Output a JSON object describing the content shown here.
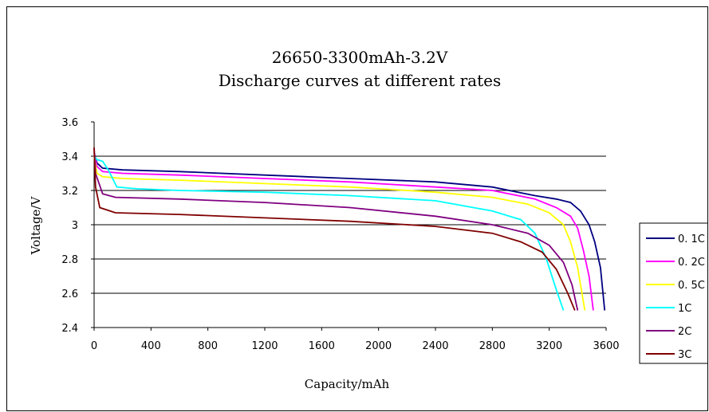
{
  "chart_data": {
    "type": "line",
    "title": "26650-3300mAh-3.2V",
    "subtitle": "Discharge curves at different rates",
    "xlabel": "Capacity/mAh",
    "ylabel": "Voltage/V",
    "xlim": [
      0,
      3600
    ],
    "ylim": [
      2.4,
      3.6
    ],
    "x_ticks": [
      0,
      400,
      800,
      1200,
      1600,
      2000,
      2400,
      2800,
      3200,
      3600
    ],
    "y_ticks": [
      2.4,
      2.6,
      2.8,
      3,
      3.2,
      3.4,
      3.6
    ],
    "x_tick_labels": [
      "0",
      "400",
      "800",
      "1200",
      "1600",
      "2000",
      "2400",
      "2800",
      "3200",
      "3600"
    ],
    "y_tick_labels": [
      "2.4",
      "2.6",
      "2.8",
      "3",
      "3.2",
      "3.4",
      "3.6"
    ],
    "grid": true,
    "legend_position": "right",
    "series": [
      {
        "name": "0. 1C",
        "color": "#000080",
        "points": [
          [
            0,
            3.42
          ],
          [
            20,
            3.36
          ],
          [
            60,
            3.33
          ],
          [
            200,
            3.32
          ],
          [
            600,
            3.31
          ],
          [
            1200,
            3.29
          ],
          [
            1800,
            3.27
          ],
          [
            2400,
            3.25
          ],
          [
            2800,
            3.22
          ],
          [
            3100,
            3.17
          ],
          [
            3250,
            3.15
          ],
          [
            3350,
            3.13
          ],
          [
            3420,
            3.08
          ],
          [
            3480,
            3.0
          ],
          [
            3520,
            2.9
          ],
          [
            3560,
            2.75
          ],
          [
            3590,
            2.5
          ]
        ]
      },
      {
        "name": "0. 2C",
        "color": "#ff00ff",
        "points": [
          [
            0,
            3.42
          ],
          [
            20,
            3.34
          ],
          [
            60,
            3.31
          ],
          [
            200,
            3.3
          ],
          [
            600,
            3.29
          ],
          [
            1200,
            3.27
          ],
          [
            1800,
            3.25
          ],
          [
            2400,
            3.22
          ],
          [
            2800,
            3.2
          ],
          [
            3100,
            3.15
          ],
          [
            3250,
            3.1
          ],
          [
            3350,
            3.05
          ],
          [
            3400,
            2.98
          ],
          [
            3440,
            2.85
          ],
          [
            3480,
            2.7
          ],
          [
            3510,
            2.5
          ]
        ]
      },
      {
        "name": "0. 5C",
        "color": "#ffff00",
        "points": [
          [
            0,
            3.4
          ],
          [
            20,
            3.3
          ],
          [
            60,
            3.28
          ],
          [
            200,
            3.27
          ],
          [
            600,
            3.26
          ],
          [
            1200,
            3.24
          ],
          [
            1800,
            3.22
          ],
          [
            2400,
            3.19
          ],
          [
            2800,
            3.16
          ],
          [
            3050,
            3.12
          ],
          [
            3200,
            3.07
          ],
          [
            3300,
            3.0
          ],
          [
            3350,
            2.9
          ],
          [
            3400,
            2.75
          ],
          [
            3430,
            2.6
          ],
          [
            3450,
            2.5
          ]
        ]
      },
      {
        "name": "1C",
        "color": "#00ffff",
        "points": [
          [
            0,
            3.4
          ],
          [
            20,
            3.38
          ],
          [
            60,
            3.37
          ],
          [
            100,
            3.32
          ],
          [
            160,
            3.22
          ],
          [
            300,
            3.21
          ],
          [
            600,
            3.2
          ],
          [
            1200,
            3.19
          ],
          [
            1800,
            3.17
          ],
          [
            2400,
            3.14
          ],
          [
            2800,
            3.08
          ],
          [
            3000,
            3.03
          ],
          [
            3100,
            2.95
          ],
          [
            3180,
            2.8
          ],
          [
            3250,
            2.62
          ],
          [
            3300,
            2.5
          ]
        ]
      },
      {
        "name": "2C",
        "color": "#800080",
        "points": [
          [
            0,
            3.45
          ],
          [
            10,
            3.3
          ],
          [
            60,
            3.18
          ],
          [
            150,
            3.16
          ],
          [
            600,
            3.15
          ],
          [
            1200,
            3.13
          ],
          [
            1800,
            3.1
          ],
          [
            2400,
            3.05
          ],
          [
            2800,
            3.0
          ],
          [
            3050,
            2.95
          ],
          [
            3200,
            2.88
          ],
          [
            3300,
            2.78
          ],
          [
            3360,
            2.65
          ],
          [
            3400,
            2.5
          ]
        ]
      },
      {
        "name": "3C",
        "color": "#800000",
        "points": [
          [
            0,
            3.45
          ],
          [
            10,
            3.22
          ],
          [
            40,
            3.1
          ],
          [
            150,
            3.07
          ],
          [
            600,
            3.06
          ],
          [
            1200,
            3.04
          ],
          [
            1800,
            3.02
          ],
          [
            2400,
            2.99
          ],
          [
            2800,
            2.95
          ],
          [
            3000,
            2.9
          ],
          [
            3150,
            2.84
          ],
          [
            3250,
            2.74
          ],
          [
            3330,
            2.6
          ],
          [
            3380,
            2.5
          ]
        ]
      }
    ]
  }
}
